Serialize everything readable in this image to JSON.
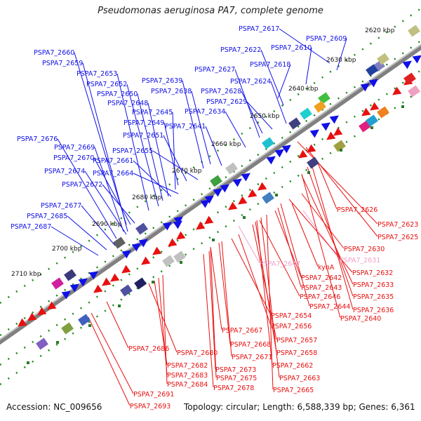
{
  "title": "Pseudomonas aeruginosa PA7, complete genome",
  "footer": {
    "accession": "Accession: NC_009656",
    "summary": "Topology: circular; Length: 6,588,339 bp; Genes: 6,361"
  },
  "ticks": [
    {
      "label": "2620 kbp"
    },
    {
      "label": "2630 kbp"
    },
    {
      "label": "2640 kbp"
    },
    {
      "label": "2650 kbp"
    },
    {
      "label": "2660 kbp"
    },
    {
      "label": "2670 kbp"
    },
    {
      "label": "2680 kbp"
    },
    {
      "label": "2690 kbp"
    },
    {
      "label": "2700 kbp"
    },
    {
      "label": "2710 kbp"
    }
  ],
  "upper_labels": [
    "PSPA7_2617",
    "PSPA7_2609",
    "PSPA7_2610",
    "PSPA7_2622",
    "PSPA7_2618",
    "PSPA7_2660",
    "PSPA7_2659",
    "PSPA7_2653",
    "PSPA7_2652",
    "PSPA7_2650",
    "PSPA7_2648",
    "PSPA7_2639",
    "PSPA7_2638",
    "PSPA7_2627",
    "PSPA7_2624",
    "PSPA7_2628",
    "PSPA7_2629",
    "PSPA7_2634",
    "PSPA7_2645",
    "PSPA7_2649",
    "PSPA7_2641",
    "PSPA7_2651",
    "PSPA7_2676",
    "PSPA7_2669",
    "PSPA7_2655",
    "PSPA7_2670",
    "PSPA7_2661",
    "PSPA7_2674",
    "PSPA7_2664",
    "PSPA7_2672",
    "PSPA7_2677",
    "PSPA7_2685",
    "PSPA7_2687"
  ],
  "lower_labels": [
    "PSPA7_2626",
    "PSPA7_2623",
    "PSPA7_2625",
    "PSPA7_2630",
    "PSPA7_2647",
    "PSPA7_2631",
    "kynA",
    "PSPA7_2632",
    "PSPA7_2642",
    "PSPA7_2633",
    "PSPA7_2643",
    "PSPA7_2635",
    "PSPA7_2646",
    "PSPA7_2644",
    "PSPA7_2636",
    "PSPA7_2640",
    "PSPA7_2654",
    "PSPA7_2656",
    "PSPA7_2667",
    "PSPA7_2657",
    "PSPA7_2668",
    "PSPA7_2658",
    "PSPA7_2671",
    "PSPA7_2662",
    "PSPA7_2686",
    "PSPA7_2680",
    "PSPA7_2673",
    "PSPA7_2663",
    "PSPA7_2682",
    "PSPA7_2675",
    "PSPA7_2683",
    "PSPA7_2678",
    "PSPA7_2665",
    "PSPA7_2684",
    "PSPA7_2691",
    "PSPA7_2693"
  ],
  "colors": {
    "forward_genes": "#1010e8",
    "reverse_genes": "#e81010",
    "highlight_label": "#f0a0c8",
    "backbone": "#808080",
    "ticks": "#1a8a1a"
  }
}
